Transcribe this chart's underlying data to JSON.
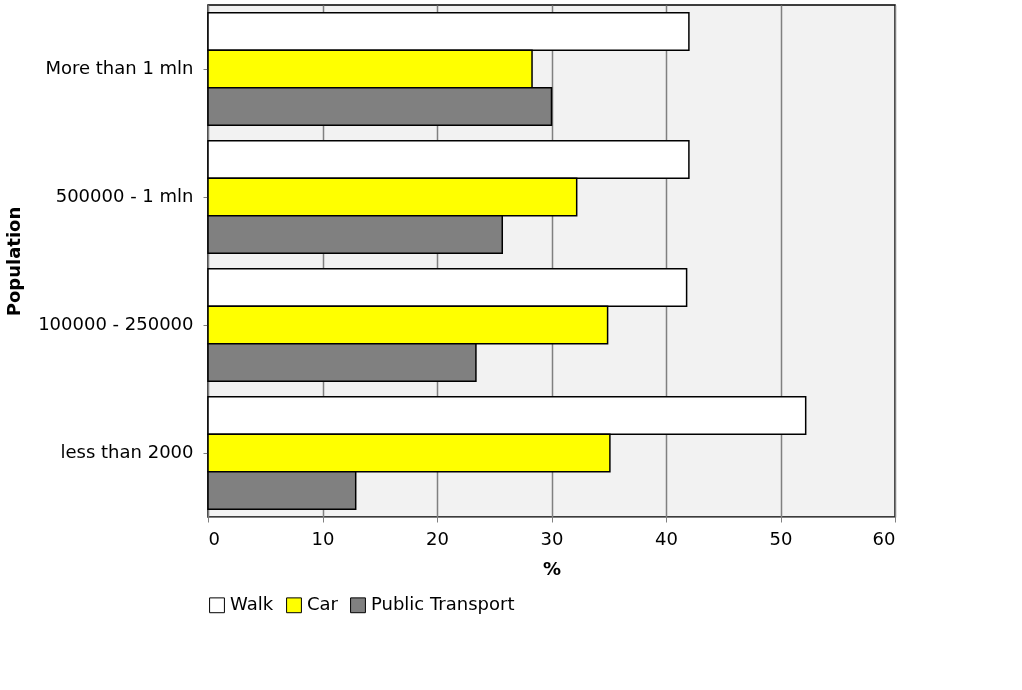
{
  "chart_data": {
    "type": "bar",
    "orientation": "horizontal",
    "xlabel": "%",
    "ylabel": "Population",
    "categories": [
      "More than 1 mln",
      "500000 - 1 mln",
      "100000 - 250000",
      "less than 2000"
    ],
    "series": [
      {
        "name": "Walk",
        "color": "#ffffff",
        "values": [
          42.0,
          42.0,
          41.8,
          52.2
        ]
      },
      {
        "name": "Car",
        "color": "#ffff00",
        "values": [
          28.3,
          32.2,
          34.9,
          35.1
        ]
      },
      {
        "name": "Public Transport",
        "color": "#808080",
        "values": [
          30.0,
          25.7,
          23.4,
          12.9
        ]
      }
    ],
    "xlim": [
      0,
      60
    ],
    "xticks": [
      0,
      10,
      20,
      30,
      40,
      50,
      60
    ],
    "grid": "x",
    "legend": "bottom"
  }
}
